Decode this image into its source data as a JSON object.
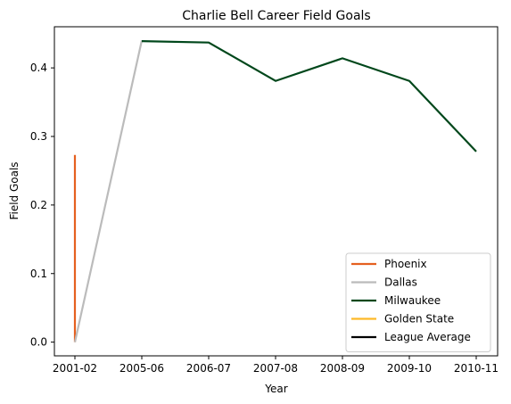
{
  "chart_data": {
    "type": "line",
    "title": "Charlie Bell  Career Field Goals",
    "xlabel": "Year",
    "ylabel": "Field Goals",
    "categories": [
      "2001-02",
      "2005-06",
      "2006-07",
      "2007-08",
      "2008-09",
      "2009-10",
      "2010-11"
    ],
    "ylim": [
      -0.02,
      0.46
    ],
    "yticks": [
      0.0,
      0.1,
      0.2,
      0.3,
      0.4
    ],
    "ytick_labels": [
      "0.0",
      "0.1",
      "0.2",
      "0.3",
      "0.4"
    ],
    "grid": false,
    "legend_position": "bottom-right",
    "series": [
      {
        "name": "Phoenix",
        "color": "#E56020",
        "points": [
          {
            "x": "2001-02",
            "y": 0.273
          },
          {
            "x": "2001-02",
            "y": 0.0
          }
        ]
      },
      {
        "name": "Dallas",
        "color": "#BBBBBB",
        "points": [
          {
            "x": "2001-02",
            "y": 0.0
          },
          {
            "x": "2005-06",
            "y": 0.44
          }
        ]
      },
      {
        "name": "Milwaukee",
        "color": "#00471B",
        "points": [
          {
            "x": "2005-06",
            "y": 0.439
          },
          {
            "x": "2006-07",
            "y": 0.437
          },
          {
            "x": "2007-08",
            "y": 0.381
          },
          {
            "x": "2008-09",
            "y": 0.414
          },
          {
            "x": "2009-10",
            "y": 0.381
          },
          {
            "x": "2010-11",
            "y": 0.278
          }
        ]
      },
      {
        "name": "Golden State",
        "color": "#FDB927",
        "points": []
      },
      {
        "name": "League Average",
        "color": "#000000",
        "points": []
      }
    ]
  }
}
